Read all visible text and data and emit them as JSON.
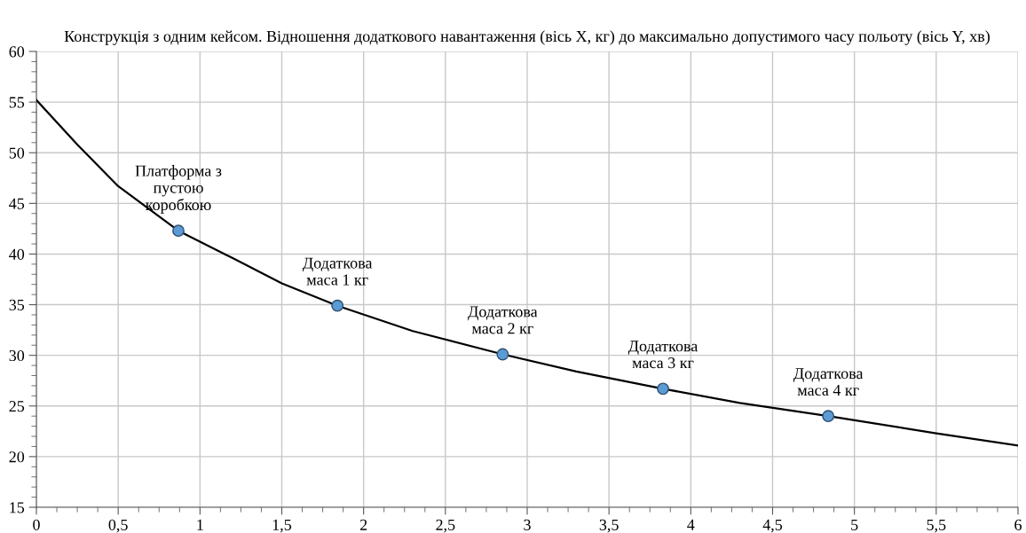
{
  "chart_data": {
    "type": "line",
    "title": "Конструкція з одним кейсом. Відношення додаткового навантаження (вісь X, кг) до максимально допустимого часу польоту (вісь Y, хв)",
    "series": [
      {
        "color": "#000000",
        "marker": "none",
        "x": [
          0,
          0.25,
          0.5,
          0.868,
          1.2,
          1.5,
          1.84,
          2.3,
          2.85,
          3.3,
          3.83,
          4.3,
          4.84,
          5.5,
          6
        ],
        "values": [
          55.2,
          50.8,
          46.7,
          42.3,
          39.6,
          37.1,
          34.9,
          32.4,
          30.1,
          28.4,
          26.7,
          25.3,
          24.0,
          22.3,
          21.1
        ]
      },
      {
        "type": "scatter",
        "color": "#5b9bd5",
        "marker": "circle",
        "x": [
          0.868,
          1.84,
          2.85,
          3.83,
          4.84
        ],
        "values": [
          42.3,
          34.9,
          30.1,
          26.7,
          24.0
        ]
      }
    ],
    "annotations": [
      {
        "text": "Платформа з\nпустою\nкоробкою",
        "x": 0.868,
        "y": 42.3
      },
      {
        "text": "Додаткова\nмаса 1 кг",
        "x": 1.84,
        "y": 34.9
      },
      {
        "text": "Додаткова\nмаса 2 кг",
        "x": 2.85,
        "y": 30.1
      },
      {
        "text": "Додаткова\nмаса 3 кг",
        "x": 3.83,
        "y": 26.7
      },
      {
        "text": "Додаткова\nмаса 4 кг",
        "x": 4.84,
        "y": 24.0
      }
    ],
    "xlim": [
      0,
      6
    ],
    "xticks": [
      0,
      {
        "value": 0.5,
        "label": "0,5"
      },
      1,
      {
        "value": 1.5,
        "label": "1,5"
      },
      2,
      {
        "value": 2.5,
        "label": "2,5"
      },
      3,
      {
        "value": 3.5,
        "label": "3,5"
      },
      4,
      {
        "value": 4.5,
        "label": "4,5"
      },
      5,
      {
        "value": 5.5,
        "label": "5,5"
      },
      6
    ],
    "ylim": [
      15,
      60
    ],
    "yticks": [
      15,
      20,
      25,
      30,
      35,
      40,
      45,
      50,
      55,
      60
    ],
    "grid": true
  }
}
